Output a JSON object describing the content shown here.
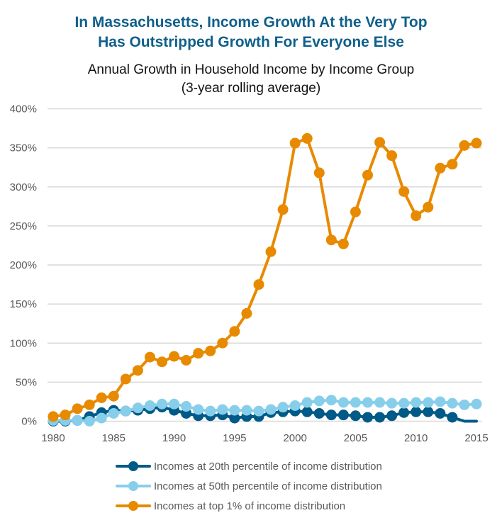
{
  "chart_data": {
    "type": "line",
    "title": "In Massachusetts, Income Growth At the Very Top Has Outstripped Growth For Everyone Else",
    "title_lines": [
      "In Massachusetts, Income Growth At the Very Top",
      "Has Outstripped Growth For Everyone Else"
    ],
    "subtitle": "Annual Growth in Household Income by Income Group (3-year rolling average)",
    "subtitle_lines": [
      "Annual Growth in Household Income by Income Group",
      "(3-year rolling average)"
    ],
    "xlabel": "",
    "ylabel": "",
    "x": [
      1980,
      1981,
      1982,
      1983,
      1984,
      1985,
      1986,
      1987,
      1988,
      1989,
      1990,
      1991,
      1992,
      1993,
      1994,
      1995,
      1996,
      1997,
      1998,
      1999,
      2000,
      2001,
      2002,
      2003,
      2004,
      2005,
      2006,
      2007,
      2008,
      2009,
      2010,
      2011,
      2012,
      2013,
      2014,
      2015
    ],
    "x_ticks": [
      1980,
      1985,
      1990,
      1995,
      2000,
      2005,
      2010,
      2015
    ],
    "x_tick_labels": [
      "1980",
      "1985",
      "1990",
      "1995",
      "2000",
      "2005",
      "2010",
      "2015"
    ],
    "ylim": [
      0,
      400
    ],
    "y_ticks": [
      0,
      50,
      100,
      150,
      200,
      250,
      300,
      350,
      400
    ],
    "y_tick_labels": [
      "0%",
      "50%",
      "100%",
      "150%",
      "200%",
      "250%",
      "300%",
      "350%",
      "400%"
    ],
    "grid": "horizontal",
    "legend_position": "bottom",
    "series": [
      {
        "name": "Incomes at 20th percentile of income distribution",
        "color": "#005a87",
        "values": [
          0,
          0,
          1,
          6,
          11,
          14,
          13,
          14,
          16,
          18,
          14,
          10,
          7,
          7,
          8,
          4,
          6,
          6,
          11,
          12,
          13,
          12,
          10,
          8,
          8,
          7,
          5,
          5,
          7,
          11,
          12,
          12,
          10,
          5,
          0,
          0
        ],
        "markers_hidden_from_year": 2014
      },
      {
        "name": "Incomes at 50th percentile of income distribution",
        "color": "#87ceeb",
        "values": [
          1,
          1,
          1,
          0,
          4,
          10,
          13,
          17,
          20,
          22,
          22,
          19,
          15,
          13,
          15,
          14,
          14,
          13,
          15,
          18,
          20,
          24,
          26,
          27,
          24,
          24,
          24,
          24,
          23,
          23,
          24,
          24,
          25,
          23,
          21,
          22
        ]
      },
      {
        "name": "Incomes at top 1% of income distribution",
        "color": "#e88a00",
        "values": [
          6,
          8,
          16,
          21,
          30,
          32,
          54,
          65,
          82,
          76,
          83,
          78,
          87,
          90,
          100,
          115,
          138,
          175,
          217,
          271,
          356,
          362,
          318,
          232,
          227,
          268,
          315,
          357,
          340,
          294,
          263,
          274,
          324,
          329,
          353,
          356
        ]
      }
    ]
  }
}
